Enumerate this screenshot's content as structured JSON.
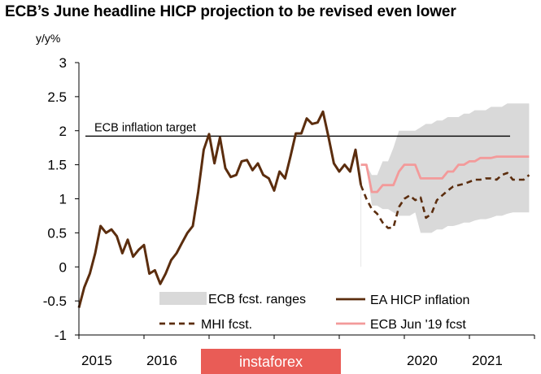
{
  "chart_data": {
    "type": "line",
    "title": "ECB’s June headline HICP projection to be revised even lower",
    "ylabel": "y/y%",
    "ylim": [
      -1,
      3
    ],
    "xlim": [
      2015,
      2022
    ],
    "y_ticks": [
      "3",
      "2.5",
      "2",
      "1.5",
      "1",
      "0.5",
      "0",
      "-0.5",
      "-1"
    ],
    "x_ticks": [
      {
        "value": 2015,
        "label": "2015"
      },
      {
        "value": 2016,
        "label": "2016"
      },
      {
        "value": 2020,
        "label": "2020"
      },
      {
        "value": 2021,
        "label": "2021"
      }
    ],
    "grid": false,
    "legend_position": "bottom-right",
    "reference_line": {
      "label": "ECB inflation  target",
      "value": 1.92
    },
    "watermark": "instaforex",
    "colors": {
      "hicp": "#5b2d0e",
      "mhi": "#5b2d0e",
      "ecb_jun": "#f39a9a",
      "range": "#d9d9d9",
      "target": "#000000",
      "watermark_bg": "#e8534d"
    },
    "series": [
      {
        "name": "EA HICP inflation",
        "style": "solid",
        "x": [
          2015.0,
          2015.083,
          2015.167,
          2015.25,
          2015.333,
          2015.417,
          2015.5,
          2015.583,
          2015.667,
          2015.75,
          2015.833,
          2015.917,
          2016.0,
          2016.083,
          2016.167,
          2016.25,
          2016.333,
          2016.417,
          2016.5,
          2016.583,
          2016.667,
          2016.75,
          2016.833,
          2016.917,
          2017.0,
          2017.083,
          2017.167,
          2017.25,
          2017.333,
          2017.417,
          2017.5,
          2017.583,
          2017.667,
          2017.75,
          2017.833,
          2017.917,
          2018.0,
          2018.083,
          2018.167,
          2018.25,
          2018.333,
          2018.417,
          2018.5,
          2018.583,
          2018.667,
          2018.75,
          2018.833,
          2018.917,
          2019.0,
          2019.083,
          2019.167,
          2019.25,
          2019.333
        ],
        "values": [
          -0.6,
          -0.3,
          -0.1,
          0.2,
          0.6,
          0.5,
          0.55,
          0.45,
          0.2,
          0.4,
          0.15,
          0.25,
          0.32,
          -0.1,
          -0.05,
          -0.25,
          -0.1,
          0.1,
          0.2,
          0.35,
          0.5,
          0.6,
          1.1,
          1.72,
          1.95,
          1.52,
          1.9,
          1.45,
          1.32,
          1.35,
          1.55,
          1.57,
          1.42,
          1.52,
          1.35,
          1.3,
          1.12,
          1.4,
          1.3,
          1.62,
          1.96,
          1.96,
          2.18,
          2.1,
          2.12,
          2.28,
          1.92,
          1.52,
          1.4,
          1.5,
          1.4,
          1.72,
          1.2
        ]
      },
      {
        "name": "MHI fcst.",
        "style": "dashed",
        "x": [
          2019.333,
          2019.417,
          2019.5,
          2019.583,
          2019.667,
          2019.75,
          2019.833,
          2019.917,
          2020.0,
          2020.083,
          2020.167,
          2020.25,
          2020.333,
          2020.417,
          2020.5,
          2020.583,
          2020.667,
          2020.75,
          2020.833,
          2020.917,
          2021.0,
          2021.083,
          2021.167,
          2021.25,
          2021.333,
          2021.417,
          2021.5,
          2021.583,
          2021.667,
          2021.75,
          2021.833,
          2021.917
        ],
        "values": [
          1.2,
          1.0,
          0.85,
          0.78,
          0.65,
          0.57,
          0.58,
          0.88,
          1.0,
          1.05,
          0.98,
          1.02,
          0.72,
          0.78,
          0.98,
          1.05,
          1.12,
          1.18,
          1.2,
          1.22,
          1.25,
          1.28,
          1.28,
          1.3,
          1.3,
          1.28,
          1.35,
          1.38,
          1.28,
          1.28,
          1.28,
          1.35
        ]
      },
      {
        "name": "ECB Jun '19 fcst",
        "style": "solid",
        "x": [
          2019.333,
          2019.417,
          2019.5,
          2019.583,
          2019.667,
          2019.75,
          2019.833,
          2019.917,
          2020.0,
          2020.083,
          2020.167,
          2020.25,
          2020.333,
          2020.417,
          2020.5,
          2020.583,
          2020.667,
          2020.75,
          2020.833,
          2020.917,
          2021.0,
          2021.083,
          2021.167,
          2021.25,
          2021.333,
          2021.417,
          2021.5,
          2021.583,
          2021.667,
          2021.75,
          2021.833,
          2021.917
        ],
        "values": [
          1.5,
          1.5,
          1.1,
          1.1,
          1.2,
          1.2,
          1.2,
          1.4,
          1.5,
          1.5,
          1.5,
          1.3,
          1.3,
          1.3,
          1.3,
          1.3,
          1.4,
          1.4,
          1.5,
          1.5,
          1.55,
          1.55,
          1.6,
          1.6,
          1.6,
          1.62,
          1.62,
          1.62,
          1.62,
          1.62,
          1.62,
          1.62
        ]
      }
    ],
    "range_band": {
      "name": "ECB fcst. ranges",
      "x": [
        2019.333,
        2019.417,
        2019.5,
        2019.583,
        2019.667,
        2019.75,
        2019.833,
        2019.917,
        2020.0,
        2020.083,
        2020.167,
        2020.25,
        2020.333,
        2020.417,
        2020.5,
        2020.583,
        2020.667,
        2020.75,
        2020.833,
        2020.917,
        2021.0,
        2021.083,
        2021.167,
        2021.25,
        2021.333,
        2021.417,
        2021.5,
        2021.583,
        2021.667,
        2021.75,
        2021.833,
        2021.917
      ],
      "upper": [
        1.5,
        1.5,
        1.35,
        1.35,
        1.55,
        1.55,
        1.75,
        2.0,
        2.0,
        2.0,
        2.0,
        2.05,
        2.1,
        2.1,
        2.15,
        2.15,
        2.2,
        2.2,
        2.2,
        2.25,
        2.25,
        2.3,
        2.3,
        2.3,
        2.35,
        2.35,
        2.35,
        2.4,
        2.4,
        2.4,
        2.4,
        2.4
      ],
      "lower": [
        1.5,
        1.5,
        0.9,
        0.9,
        0.85,
        0.85,
        0.8,
        0.75,
        0.75,
        0.75,
        0.8,
        0.5,
        0.5,
        0.5,
        0.55,
        0.55,
        0.6,
        0.6,
        0.62,
        0.65,
        0.65,
        0.68,
        0.7,
        0.7,
        0.72,
        0.75,
        0.75,
        0.78,
        0.8,
        0.8,
        0.8,
        0.8
      ]
    },
    "legend": [
      {
        "label": "ECB fcst. ranges",
        "kind": "band"
      },
      {
        "label": "EA HICP inflation",
        "kind": "solid-dark"
      },
      {
        "label": "MHI fcst.",
        "kind": "dashed-dark"
      },
      {
        "label": "ECB Jun '19 fcst",
        "kind": "solid-pink"
      }
    ]
  }
}
